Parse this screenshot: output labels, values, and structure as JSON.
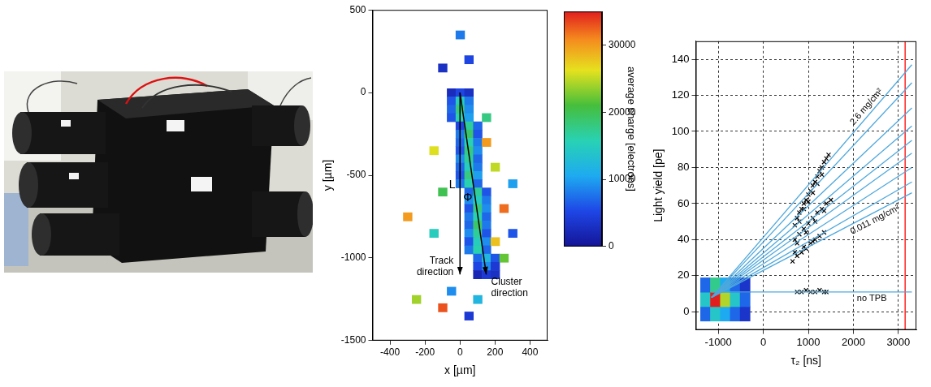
{
  "chart_data": [
    {
      "type": "heatmap",
      "xlabel": "x [µm]",
      "ylabel": "y [µm]",
      "xlim": [
        -500,
        500
      ],
      "xticks": [
        -400,
        -200,
        0,
        200,
        400
      ],
      "ylim": [
        -1500,
        500
      ],
      "yticks": [
        -1500,
        -1000,
        -500,
        0,
        500
      ],
      "grid": false,
      "cell_size": [
        50,
        50
      ],
      "cells": [
        [
          -50,
          0,
          2500
        ],
        [
          0,
          0,
          5000
        ],
        [
          50,
          0,
          3000
        ],
        [
          -50,
          -50,
          6000
        ],
        [
          0,
          -50,
          15000
        ],
        [
          50,
          -50,
          8000
        ],
        [
          -50,
          -100,
          7000
        ],
        [
          0,
          -100,
          18000
        ],
        [
          50,
          -100,
          9000
        ],
        [
          -50,
          -150,
          6000
        ],
        [
          0,
          -150,
          16000
        ],
        [
          50,
          -150,
          10000
        ],
        [
          0,
          -200,
          5000
        ],
        [
          50,
          -200,
          17000
        ],
        [
          100,
          -200,
          7000
        ],
        [
          0,
          -250,
          8000
        ],
        [
          50,
          -250,
          19000
        ],
        [
          100,
          -250,
          6000
        ],
        [
          0,
          -300,
          7000
        ],
        [
          50,
          -300,
          16000
        ],
        [
          100,
          -300,
          8000
        ],
        [
          0,
          -350,
          6000
        ],
        [
          50,
          -350,
          18000
        ],
        [
          100,
          -350,
          9000
        ],
        [
          0,
          -400,
          9000
        ],
        [
          50,
          -400,
          17000
        ],
        [
          100,
          -400,
          7000
        ],
        [
          0,
          -450,
          7000
        ],
        [
          50,
          -450,
          15000
        ],
        [
          100,
          -450,
          8000
        ],
        [
          0,
          -500,
          6000
        ],
        [
          50,
          -500,
          18000
        ],
        [
          100,
          -500,
          10000
        ],
        [
          0,
          -550,
          8000
        ],
        [
          50,
          -550,
          16000
        ],
        [
          100,
          -550,
          7000
        ],
        [
          50,
          -600,
          7000
        ],
        [
          100,
          -600,
          17000
        ],
        [
          150,
          -600,
          6000
        ],
        [
          50,
          -650,
          9000
        ],
        [
          100,
          -650,
          15000
        ],
        [
          150,
          -650,
          8000
        ],
        [
          50,
          -700,
          6000
        ],
        [
          100,
          -700,
          18000
        ],
        [
          150,
          -700,
          9000
        ],
        [
          50,
          -750,
          8000
        ],
        [
          100,
          -750,
          16000
        ],
        [
          150,
          -750,
          7000
        ],
        [
          50,
          -800,
          7000
        ],
        [
          100,
          -800,
          19000
        ],
        [
          150,
          -800,
          8000
        ],
        [
          50,
          -850,
          9000
        ],
        [
          100,
          -850,
          17000
        ],
        [
          150,
          -850,
          6000
        ],
        [
          50,
          -900,
          6000
        ],
        [
          100,
          -900,
          15000
        ],
        [
          150,
          -900,
          9000
        ],
        [
          50,
          -950,
          8000
        ],
        [
          100,
          -950,
          16000
        ],
        [
          150,
          -950,
          7000
        ],
        [
          100,
          -1000,
          7000
        ],
        [
          150,
          -1000,
          12000
        ],
        [
          200,
          -1000,
          6000
        ],
        [
          100,
          -1050,
          5000
        ],
        [
          150,
          -1050,
          9000
        ],
        [
          200,
          -1050,
          4000
        ],
        [
          100,
          -1100,
          2000
        ],
        [
          150,
          -1100,
          4000
        ],
        [
          200,
          -1100,
          3000
        ],
        [
          150,
          -300,
          30000
        ],
        [
          200,
          -450,
          25000
        ],
        [
          -100,
          -600,
          20000
        ],
        [
          250,
          -700,
          32000
        ],
        [
          -150,
          -850,
          15000
        ],
        [
          200,
          -900,
          28000
        ],
        [
          250,
          -1000,
          22000
        ],
        [
          -50,
          -1200,
          9000
        ],
        [
          100,
          -1250,
          12000
        ],
        [
          50,
          200,
          5000
        ],
        [
          0,
          350,
          8000
        ],
        [
          -100,
          150,
          3000
        ],
        [
          150,
          -150,
          18000
        ],
        [
          -150,
          -350,
          26000
        ],
        [
          300,
          -550,
          10000
        ],
        [
          -300,
          -750,
          30000
        ],
        [
          50,
          -1350,
          4000
        ],
        [
          -250,
          -1250,
          24000
        ],
        [
          -100,
          -1300,
          33000
        ],
        [
          300,
          -850,
          6000
        ]
      ],
      "colorbar": {
        "label": "average charge [electrons]",
        "range": [
          0,
          35000
        ],
        "ticks": [
          0,
          10000,
          20000,
          30000
        ]
      },
      "arrows": [
        {
          "from": [
            0,
            0
          ],
          "to": [
            0,
            -1100
          ],
          "label": "Track direction"
        },
        {
          "from": [
            0,
            0
          ],
          "to": [
            150,
            -1100
          ],
          "label": "Cluster direction"
        }
      ],
      "annotations": [
        {
          "text": "L",
          "x": -45,
          "y": -560
        },
        {
          "text": "Φ",
          "x": 45,
          "y": -640
        }
      ]
    },
    {
      "type": "scatter",
      "xlabel": "τ₂ [ns]",
      "ylabel": "Light yield [pe]",
      "xlim": [
        -1500,
        3400
      ],
      "xticks": [
        -1000,
        0,
        1000,
        2000,
        3000
      ],
      "ylim": [
        -10,
        150
      ],
      "yticks": [
        0,
        20,
        40,
        60,
        80,
        100,
        120,
        140
      ],
      "grid": true,
      "series": [
        {
          "type": "line",
          "color": "#4fa8dc",
          "x": [
            -1150,
            3300
          ],
          "values": [
            8,
            137
          ],
          "label": "2.6 mg/cm²"
        },
        {
          "type": "line",
          "color": "#4fa8dc",
          "x": [
            -1150,
            3300
          ],
          "values": [
            8,
            127
          ]
        },
        {
          "type": "line",
          "color": "#4fa8dc",
          "x": [
            -1150,
            3300
          ],
          "values": [
            8,
            113
          ]
        },
        {
          "type": "line",
          "color": "#4fa8dc",
          "x": [
            -1150,
            3300
          ],
          "values": [
            8,
            103
          ]
        },
        {
          "type": "line",
          "color": "#4fa8dc",
          "x": [
            -1150,
            3300
          ],
          "values": [
            8,
            95
          ]
        },
        {
          "type": "line",
          "color": "#4fa8dc",
          "x": [
            -1150,
            3300
          ],
          "values": [
            8,
            88
          ]
        },
        {
          "type": "line",
          "color": "#4fa8dc",
          "x": [
            -1150,
            3300
          ],
          "values": [
            8,
            80
          ]
        },
        {
          "type": "line",
          "color": "#4fa8dc",
          "x": [
            -1150,
            3300
          ],
          "values": [
            8,
            72
          ]
        },
        {
          "type": "line",
          "color": "#4fa8dc",
          "x": [
            -1150,
            3300
          ],
          "values": [
            8,
            66
          ],
          "label": "0.011 mg/cm²"
        },
        {
          "type": "line",
          "color": "#4fa8dc",
          "x": [
            -1150,
            3300
          ],
          "values": [
            11,
            11
          ],
          "label": "no TPB"
        },
        {
          "type": "line",
          "color": "#ff0000",
          "x": [
            3150,
            3150
          ],
          "values": [
            -10,
            150
          ]
        },
        {
          "type": "scatter",
          "color": "#000000",
          "marker": "cross",
          "x": [
            700,
            750,
            800,
            850,
            900,
            950,
            1000,
            1050,
            1100,
            1150,
            1200,
            1250,
            1300,
            1350,
            1400,
            1450,
            800,
            900,
            1000,
            1100,
            1200,
            1300,
            700,
            800,
            900,
            1000,
            1100,
            1200,
            1300,
            1400,
            1500,
            750,
            950,
            1150,
            1350,
            650,
            750,
            850,
            950,
            1050,
            1150,
            1250,
            1350,
            700,
            900,
            1100,
            750,
            850,
            950,
            1050,
            1150,
            1250,
            1350,
            1400
          ],
          "values": [
            48,
            52,
            55,
            57,
            60,
            62,
            65,
            67,
            70,
            72,
            75,
            78,
            80,
            83,
            85,
            87,
            50,
            57,
            61,
            66,
            71,
            76,
            40,
            43,
            46,
            49,
            52,
            55,
            57,
            60,
            62,
            38,
            44,
            50,
            56,
            28,
            31,
            33,
            35,
            38,
            40,
            42,
            44,
            33,
            36,
            39,
            11,
            11,
            12,
            11,
            11,
            12,
            11,
            11
          ]
        }
      ],
      "density": {
        "range": [
          0,
          10
        ],
        "cell_size": [
          220,
          8
        ],
        "cells": [
          [
            -1290,
            -1,
            2
          ],
          [
            -1070,
            -1,
            4
          ],
          [
            -850,
            -1,
            3
          ],
          [
            -630,
            -1,
            2
          ],
          [
            -410,
            -1,
            1
          ],
          [
            -1290,
            7,
            4
          ],
          [
            -1070,
            7,
            10
          ],
          [
            -850,
            7,
            7
          ],
          [
            -630,
            7,
            4
          ],
          [
            -410,
            7,
            2
          ],
          [
            -1290,
            15,
            2
          ],
          [
            -1070,
            15,
            5
          ],
          [
            -850,
            15,
            3
          ],
          [
            -630,
            15,
            2
          ],
          [
            -410,
            15,
            1
          ]
        ]
      }
    }
  ]
}
